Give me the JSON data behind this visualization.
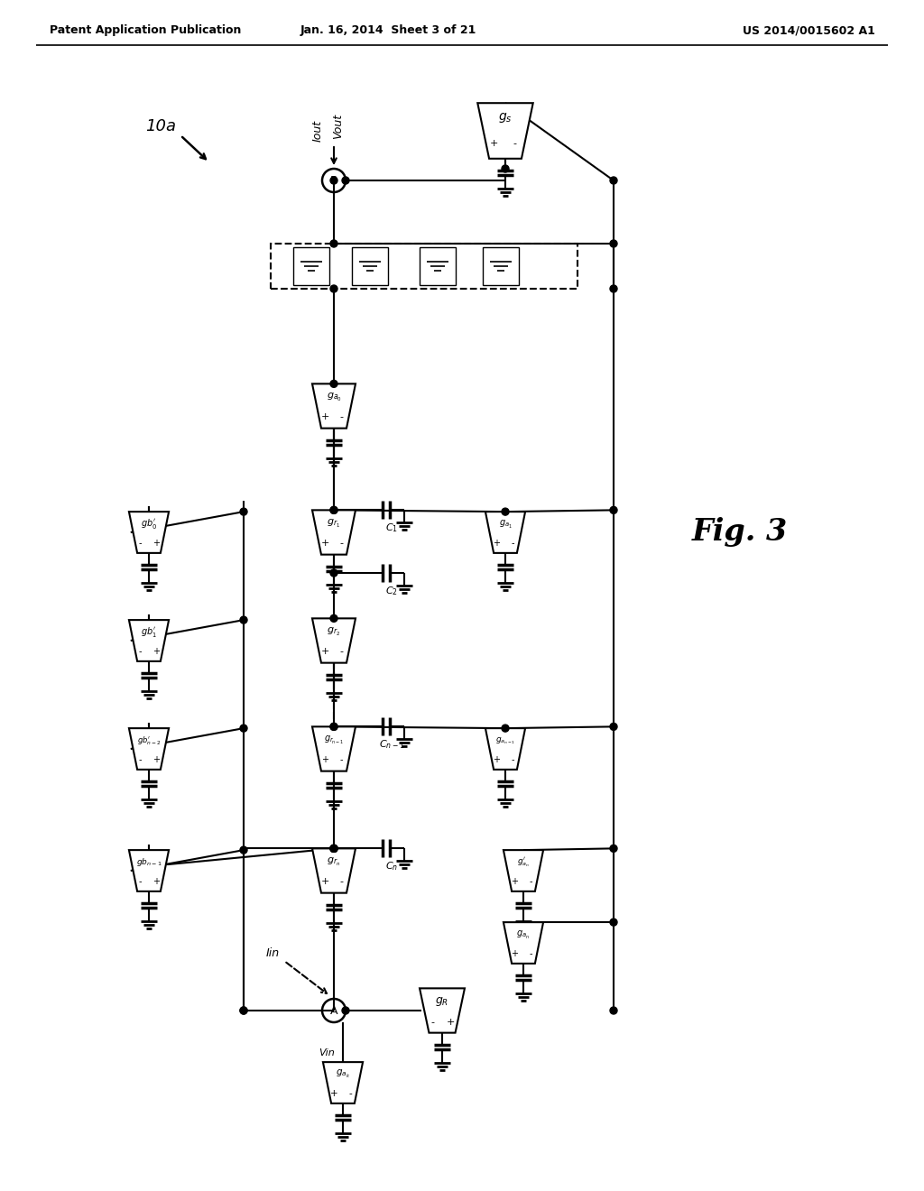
{
  "header_left": "Patent Application Publication",
  "header_center": "Jan. 16, 2014  Sheet 3 of 21",
  "header_right": "US 2014/0015602 A1",
  "background": "#ffffff"
}
